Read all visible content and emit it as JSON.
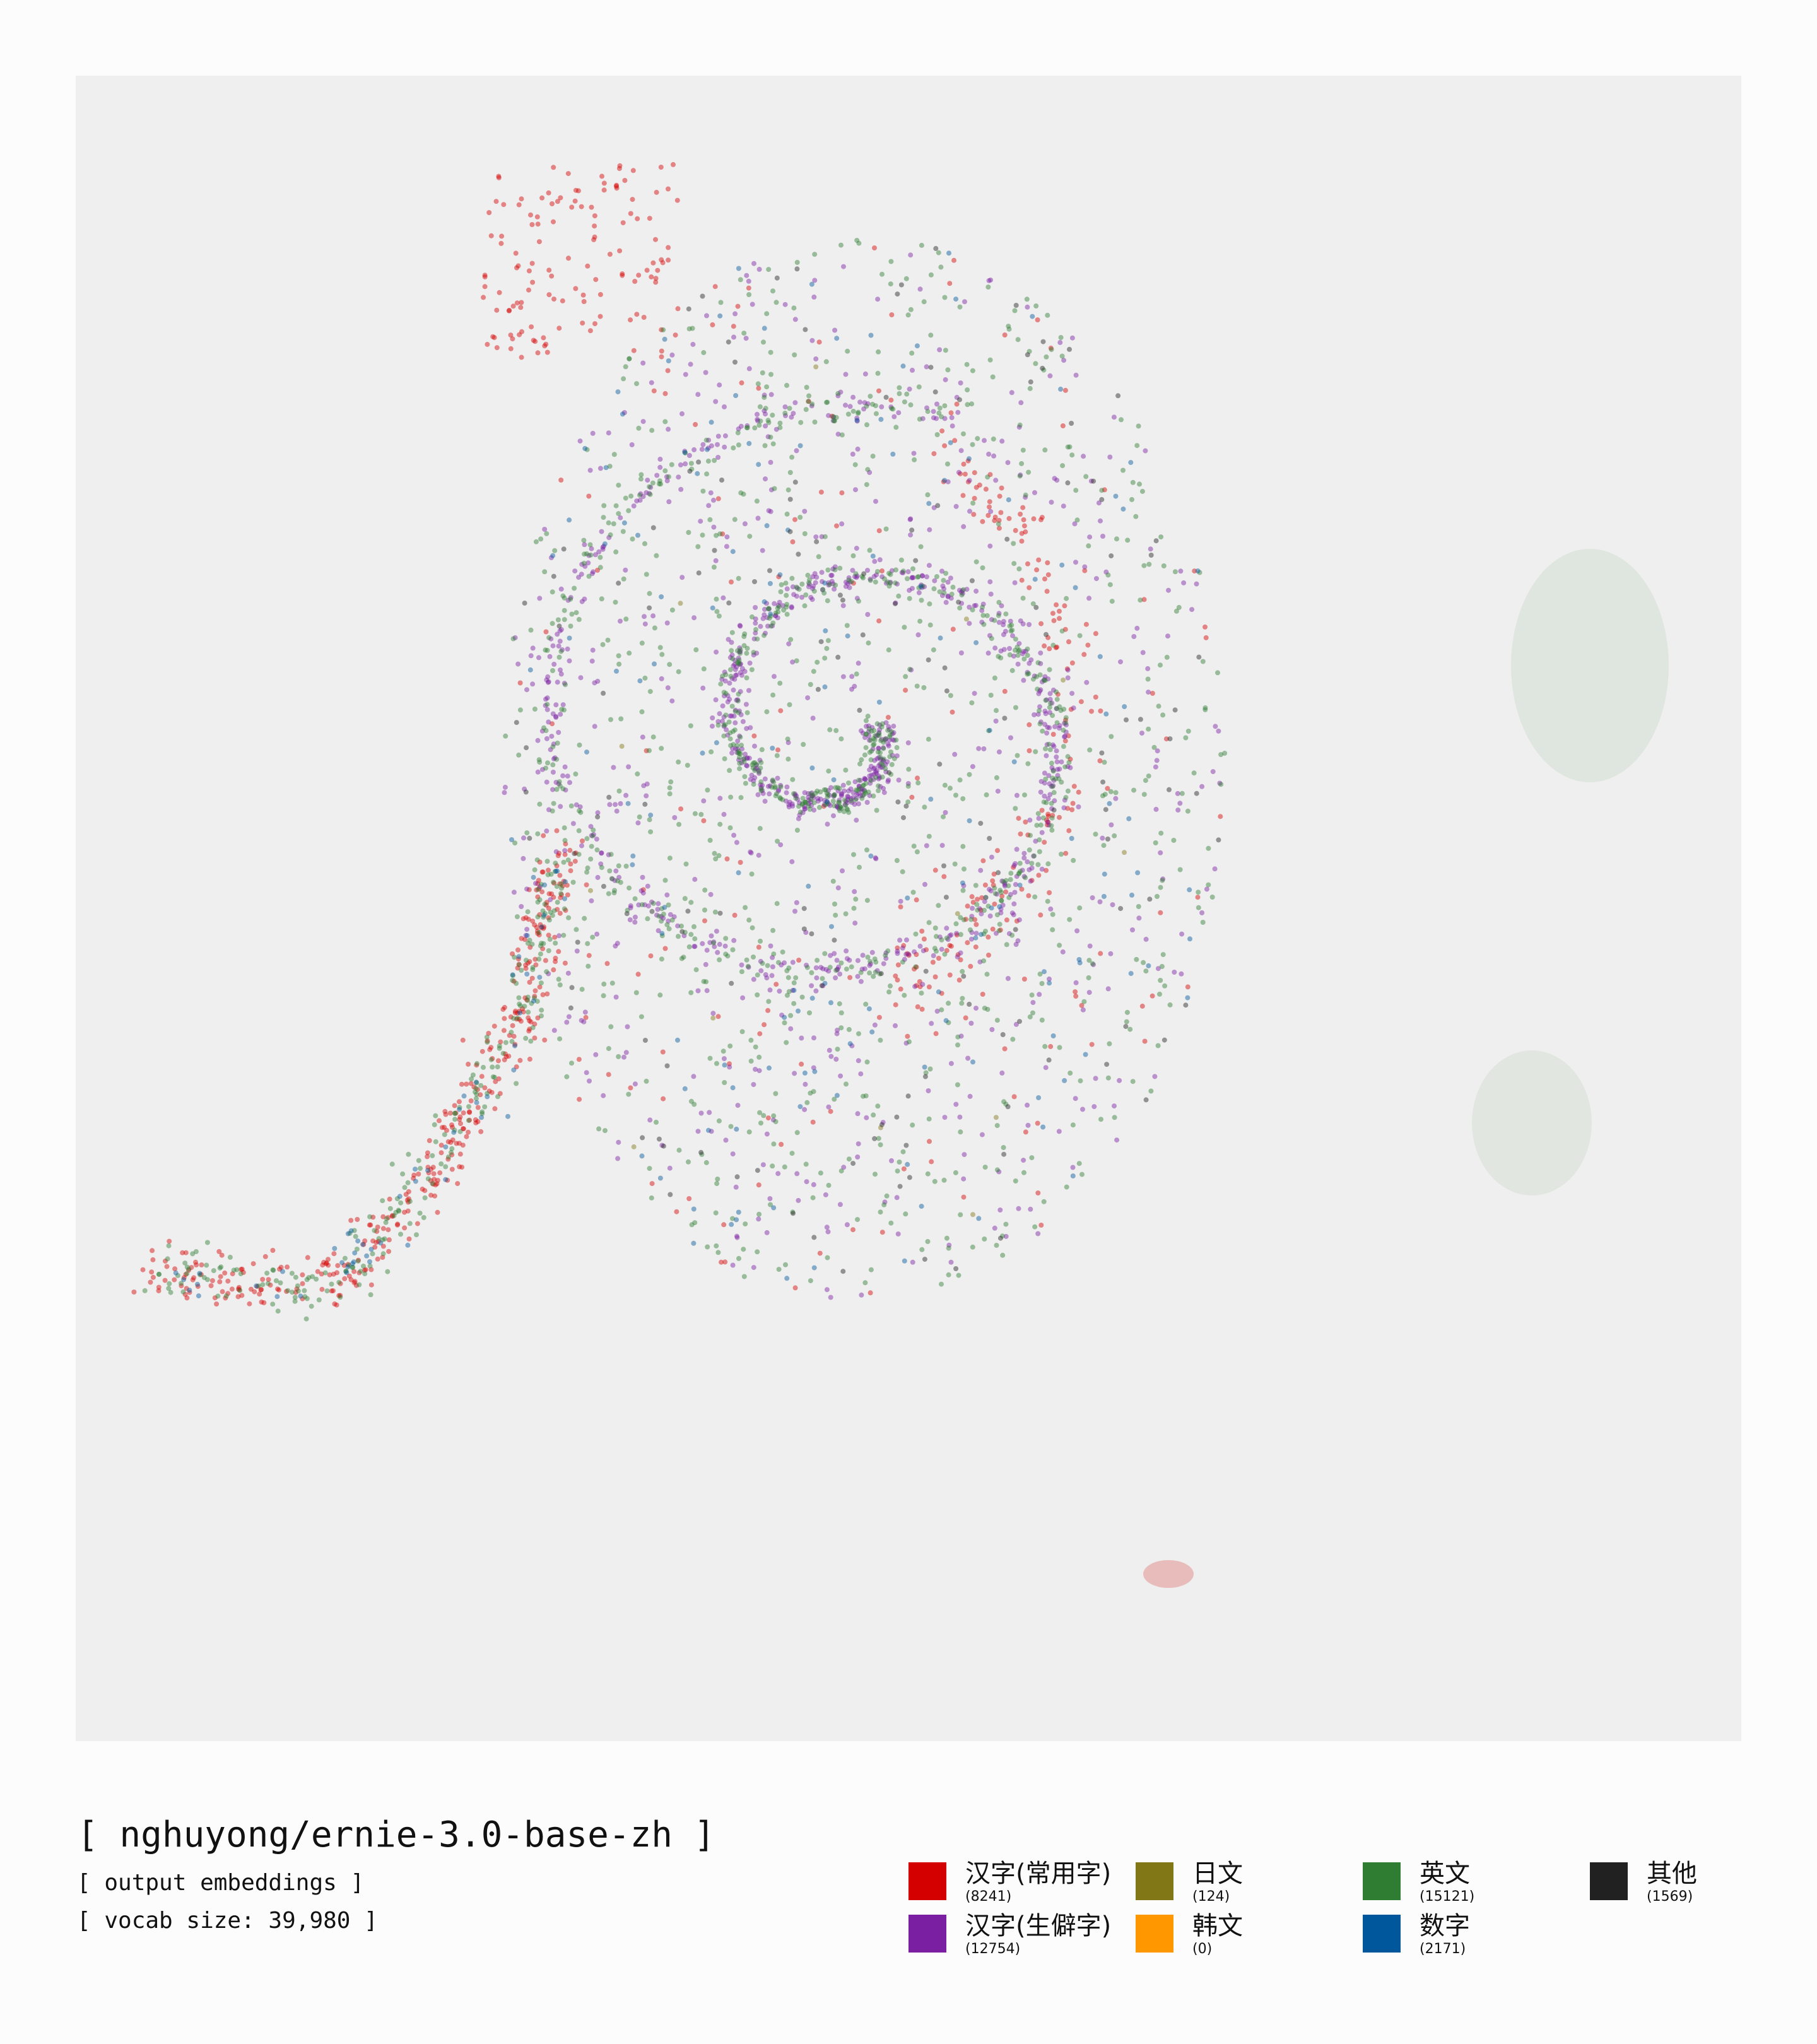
{
  "chart_data": {
    "type": "scatter",
    "title": "[ nghuyong/ernie-3.0-base-zh ]",
    "subtitle": [
      "[ output embeddings ]",
      "[ vocab size: 39,980 ]"
    ],
    "series": [
      {
        "name": "汉字(常用字)",
        "color": "#d40000",
        "values": [
          8241
        ],
        "value_labels": [
          "(8241)"
        ]
      },
      {
        "name": "汉字(生僻字)",
        "color": "#7b1fa2",
        "values": [
          12754
        ],
        "value_labels": [
          "(12754)"
        ]
      },
      {
        "name": "日文",
        "color": "#827717",
        "values": [
          124
        ],
        "value_labels": [
          "(124)"
        ]
      },
      {
        "name": "韩文",
        "color": "#ff9800",
        "values": [
          0
        ],
        "value_labels": [
          "(0)"
        ]
      },
      {
        "name": "英文",
        "color": "#2e7d32",
        "values": [
          15121
        ],
        "value_labels": [
          "(15121)"
        ]
      },
      {
        "name": "数字",
        "color": "#01579b",
        "values": [
          2171
        ],
        "value_labels": [
          "(2171)"
        ]
      },
      {
        "name": "其他",
        "color": "#212121",
        "values": [
          1569
        ],
        "value_labels": [
          "(1569)"
        ]
      }
    ]
  }
}
